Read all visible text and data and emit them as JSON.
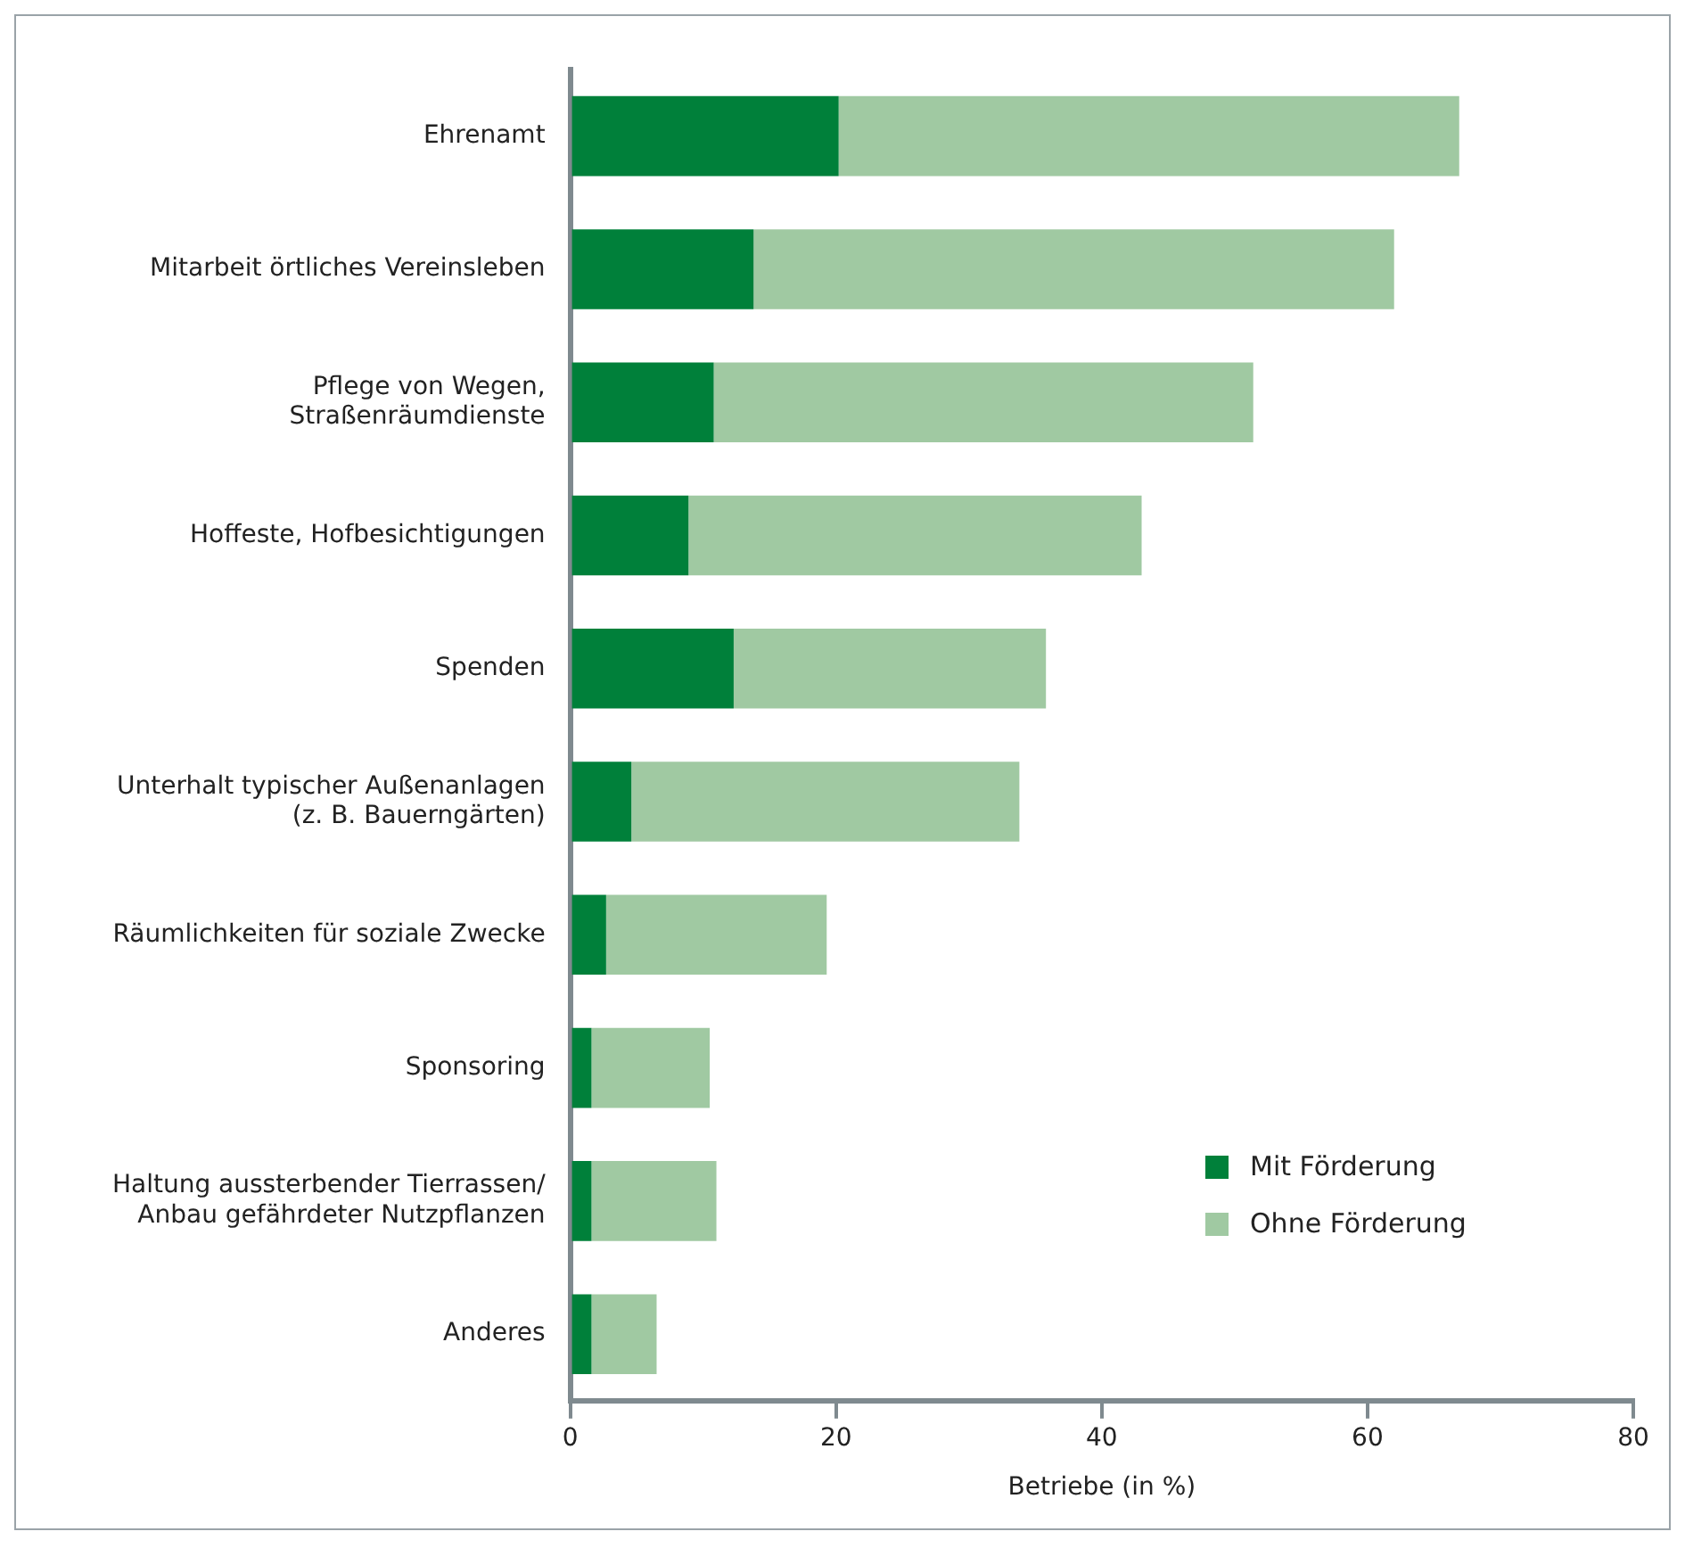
{
  "chart_data": {
    "type": "bar",
    "orientation": "horizontal",
    "stacked": true,
    "xlabel": "Betriebe (in %)",
    "categories": [
      "Ehrenamt",
      "Mitarbeit örtliches Vereinsleben",
      "Pflege von Wegen,\nStraßenräumdienste",
      "Hoffeste, Hofbesichtigungen",
      "Spenden",
      "Unterhalt typischer Außenanlagen\n(z. B. Bauerngärten)",
      "Räumlichkeiten für soziale Zwecke",
      "Sponsoring",
      "Haltung aussterbender Tierrassen/\nAnbau gefährdeter Nutzpflanzen",
      "Anderes"
    ],
    "series": [
      {
        "name": "Mit Förderung",
        "color": "#00803a",
        "values": [
          20.2,
          13.8,
          10.8,
          8.9,
          12.3,
          4.6,
          2.7,
          1.6,
          1.6,
          1.6
        ]
      },
      {
        "name": "Ohne Förderung",
        "color": "#a0c9a2",
        "values": [
          46.7,
          48.2,
          40.6,
          34.1,
          23.5,
          29.2,
          16.6,
          8.9,
          9.4,
          4.9
        ]
      }
    ],
    "xlim": [
      0,
      80
    ],
    "xticks": [
      0,
      20,
      40,
      60,
      80
    ],
    "grid": false,
    "legend": "bottom right"
  }
}
